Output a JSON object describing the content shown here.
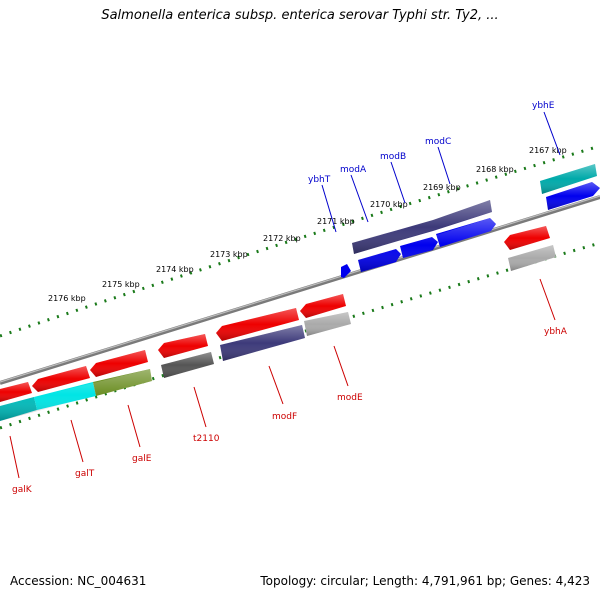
{
  "title": "Salmonella enterica subsp. enterica serovar Typhi str. Ty2, ...",
  "footer": {
    "accession": "Accession: NC_004631",
    "topology": "Topology: circular; Length: 4,791,961 bp; Genes: 4,423"
  },
  "colors": {
    "forward_label": "#0000cc",
    "reverse_label": "#cc0000",
    "backbone": "#8a8a8a",
    "tick_dots": "#1a7a1a"
  },
  "scale_labels": [
    "2176 kbp",
    "2175 kbp",
    "2174 kbp",
    "2173 kbp",
    "2172 kbp",
    "2171 kbp",
    "2170 kbp",
    "2169 kbp",
    "2168 kbp",
    "2167 kbp"
  ],
  "forward_genes": [
    {
      "name": "ybhT",
      "color": "#0000ee"
    },
    {
      "name": "modA",
      "color": "#3d3a7a"
    },
    {
      "name": "modB",
      "color": "#3d3a7a"
    },
    {
      "name": "modC",
      "color": "#3d3a7a"
    },
    {
      "name": "ybhE",
      "color": "#00aaaa"
    }
  ],
  "reverse_genes": [
    {
      "name": "galK",
      "color": "#00cccc"
    },
    {
      "name": "galT",
      "color": "#00dddd"
    },
    {
      "name": "galE",
      "color": "#6b8e23"
    },
    {
      "name": "t2110",
      "color": "#555555"
    },
    {
      "name": "modF",
      "color": "#3d3a7a"
    },
    {
      "name": "modE",
      "color": "#aaaaaa"
    },
    {
      "name": "ybhA",
      "color": "#aaaaaa"
    }
  ]
}
